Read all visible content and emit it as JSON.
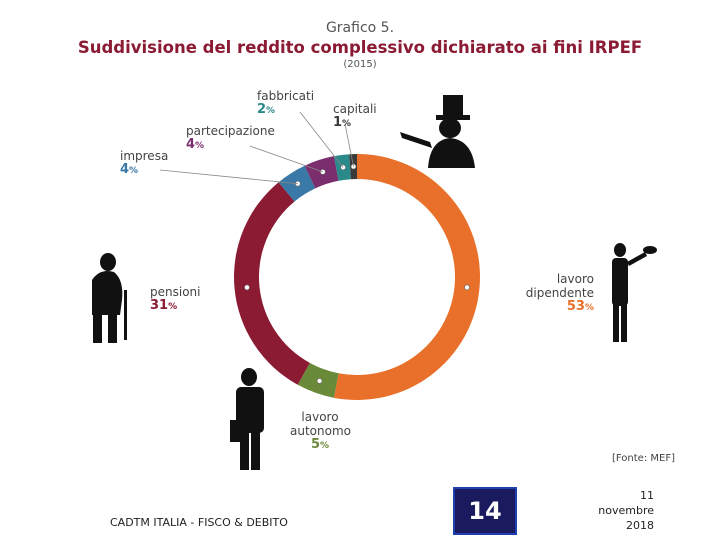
{
  "chart_data": {
    "type": "pie",
    "kicker": "Grafico 5.",
    "title": "Suddivisione del reddito complessivo dichiarato ai fini IRPEF",
    "subtitle": "(2015)",
    "source": "[Fonte: MEF]",
    "slices": [
      {
        "name": "lavoro dipendente",
        "value": 53,
        "pct_label": "53",
        "color": "#e8702a"
      },
      {
        "name": "lavoro autonomo",
        "value": 5,
        "pct_label": "5",
        "color": "#6a8a3a"
      },
      {
        "name": "pensioni",
        "value": 31,
        "pct_label": "31",
        "color": "#8b1a33"
      },
      {
        "name": "impresa",
        "value": 4,
        "pct_label": "4",
        "color": "#3a78a8"
      },
      {
        "name": "partecipazione",
        "value": 4,
        "pct_label": "4",
        "color": "#7a2e6e"
      },
      {
        "name": "fabbricati",
        "value": 2,
        "pct_label": "2",
        "color": "#2a8a8a"
      },
      {
        "name": "capitali",
        "value": 1,
        "pct_label": "1",
        "color": "#3a3a3a"
      }
    ],
    "percent_sign": "%"
  },
  "footer": {
    "left_text": "CADTM ITALIA - FISCO & DEBITO",
    "page_number": "14",
    "date_line1": "11",
    "date_line2": "novembre",
    "date_line3": "2018"
  }
}
